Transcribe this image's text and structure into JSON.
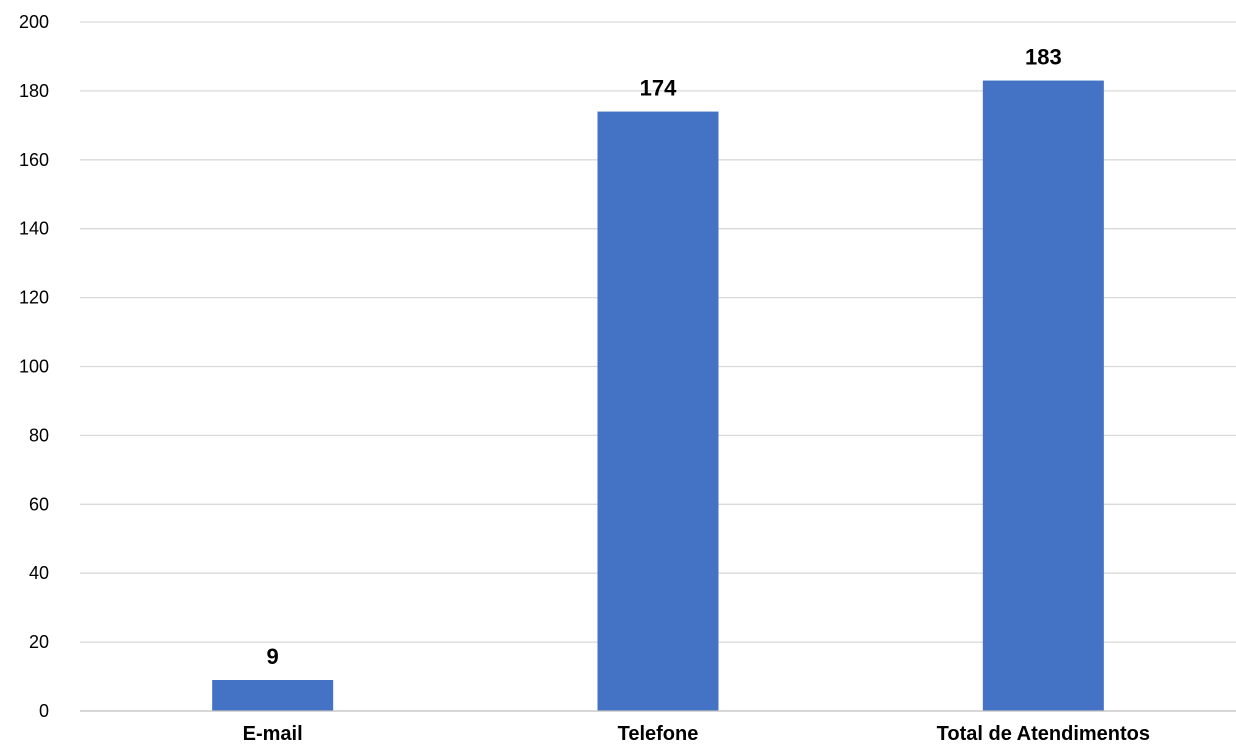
{
  "chart_data": {
    "type": "bar",
    "categories": [
      "E-mail",
      "Telefone",
      "Total de Atendimentos"
    ],
    "values": [
      9,
      174,
      183
    ],
    "ylim": [
      0,
      200
    ],
    "yticks": [
      0,
      20,
      40,
      60,
      80,
      100,
      120,
      140,
      160,
      180,
      200
    ],
    "grid": true,
    "legend": "none",
    "colors": {
      "bar": "#4472C4"
    }
  }
}
